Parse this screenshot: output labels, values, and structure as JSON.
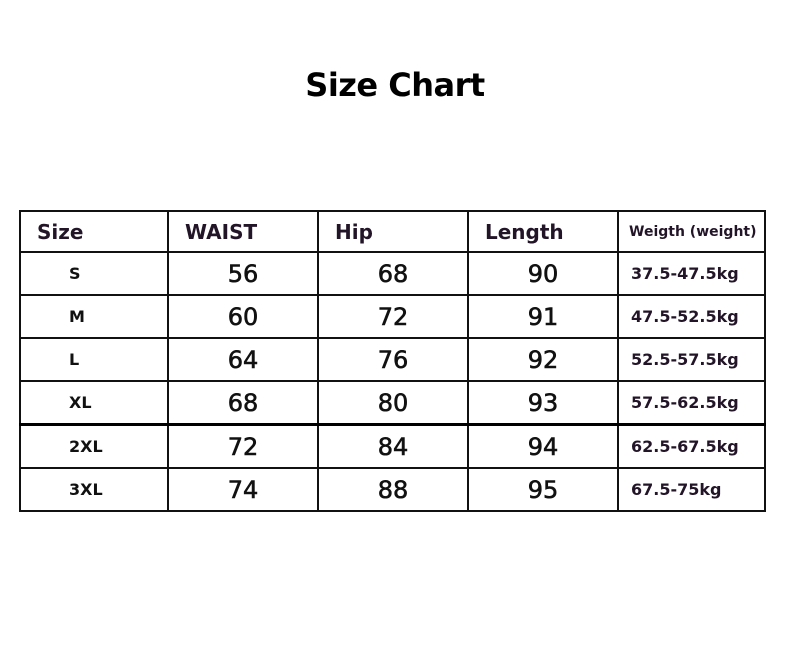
{
  "title": "Size Chart",
  "table": {
    "headers": [
      "Size",
      "WAIST",
      "Hip",
      "Length",
      "Weigth (weight)"
    ],
    "rows": [
      [
        "S",
        "56",
        "68",
        "90",
        "37.5-47.5kg"
      ],
      [
        "M",
        "60",
        "72",
        "91",
        "47.5-52.5kg"
      ],
      [
        "L",
        "64",
        "76",
        "92",
        "52.5-57.5kg"
      ],
      [
        "XL",
        "68",
        "80",
        "93",
        "57.5-62.5kg"
      ],
      [
        "2XL",
        "72",
        "84",
        "94",
        "62.5-67.5kg"
      ],
      [
        "3XL",
        "74",
        "88",
        "95",
        "67.5-75kg"
      ]
    ]
  },
  "colors": {
    "header_text": "#231528",
    "border": "#111111"
  }
}
